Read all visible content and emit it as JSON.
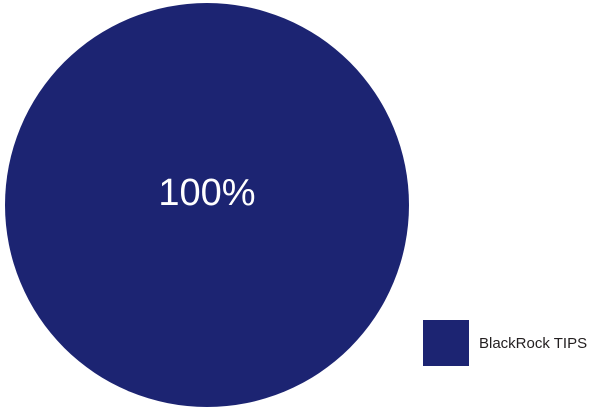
{
  "chart_data": {
    "type": "pie",
    "slices": [
      {
        "name": "BlackRock TIPS",
        "value": 100,
        "label": "100%",
        "color": "#1c2472"
      }
    ],
    "legend_position": "bottom-right"
  }
}
